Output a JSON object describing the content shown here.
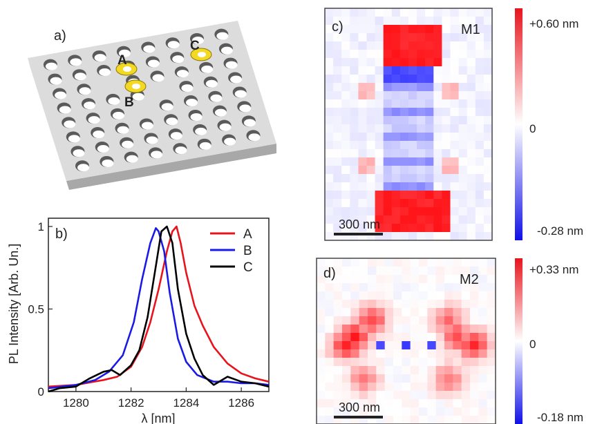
{
  "panels": {
    "a": {
      "label": "a)"
    },
    "b": {
      "label": "b)"
    },
    "c": {
      "label": "c)",
      "mode": "M1",
      "scalebar": "300 nm"
    },
    "d": {
      "label": "d)",
      "mode": "M2",
      "scalebar": "300 nm"
    }
  },
  "cavities": [
    {
      "name": "A"
    },
    {
      "name": "B"
    },
    {
      "name": "C"
    }
  ],
  "colorbar_c": {
    "max": "+0.60 nm",
    "mid": "0",
    "min": "-0.28 nm"
  },
  "colorbar_d": {
    "max": "+0.33 nm",
    "mid": "0",
    "min": "-0.18 nm"
  },
  "colors": {
    "A": "#e8141c",
    "B": "#1a1ae6",
    "C": "#000000",
    "ring": "#f3d824",
    "slab": "#dcdcdc"
  },
  "chart_data": {
    "type": "line",
    "xlabel": "λ [nm]",
    "ylabel": "PL Intensity [Arb. Un.]",
    "xlim": [
      1279,
      1287
    ],
    "ylim": [
      0,
      1.05
    ],
    "xticks": [
      1280,
      1282,
      1284,
      1286
    ],
    "yticks": [
      0,
      0.5,
      1
    ],
    "legend": "top-right",
    "series": [
      {
        "name": "A",
        "color": "#e8141c",
        "x": [
          1279,
          1280,
          1281,
          1281.5,
          1282,
          1282.4,
          1282.7,
          1283,
          1283.3,
          1283.5,
          1283.65,
          1283.8,
          1284,
          1284.3,
          1284.6,
          1285,
          1285.5,
          1286,
          1286.5,
          1287
        ],
        "y": [
          0.03,
          0.04,
          0.07,
          0.09,
          0.15,
          0.27,
          0.42,
          0.62,
          0.85,
          0.97,
          1.0,
          0.9,
          0.72,
          0.52,
          0.4,
          0.27,
          0.17,
          0.11,
          0.08,
          0.06
        ]
      },
      {
        "name": "B",
        "color": "#1a1ae6",
        "x": [
          1279,
          1280,
          1280.7,
          1281.2,
          1281.7,
          1282.1,
          1282.4,
          1282.7,
          1282.9,
          1283,
          1283.2,
          1283.4,
          1283.7,
          1284,
          1284.4,
          1285,
          1285.5,
          1286,
          1286.5,
          1287
        ],
        "y": [
          0.02,
          0.04,
          0.07,
          0.12,
          0.22,
          0.42,
          0.68,
          0.9,
          0.99,
          0.97,
          0.85,
          0.6,
          0.32,
          0.18,
          0.1,
          0.06,
          0.06,
          0.05,
          0.05,
          0.04
        ]
      },
      {
        "name": "C",
        "color": "#000000",
        "x": [
          1279,
          1279.4,
          1280,
          1280.5,
          1281,
          1281.3,
          1281.6,
          1282,
          1282.3,
          1282.6,
          1282.9,
          1283.1,
          1283.3,
          1283.5,
          1283.7,
          1284,
          1284.3,
          1284.6,
          1285,
          1285.5,
          1286,
          1286.5,
          1287
        ],
        "y": [
          0.0,
          0.02,
          0.03,
          0.08,
          0.12,
          0.13,
          0.1,
          0.16,
          0.25,
          0.45,
          0.76,
          0.97,
          1.0,
          0.9,
          0.62,
          0.35,
          0.2,
          0.1,
          0.04,
          0.09,
          0.06,
          0.05,
          0.03
        ]
      }
    ]
  }
}
